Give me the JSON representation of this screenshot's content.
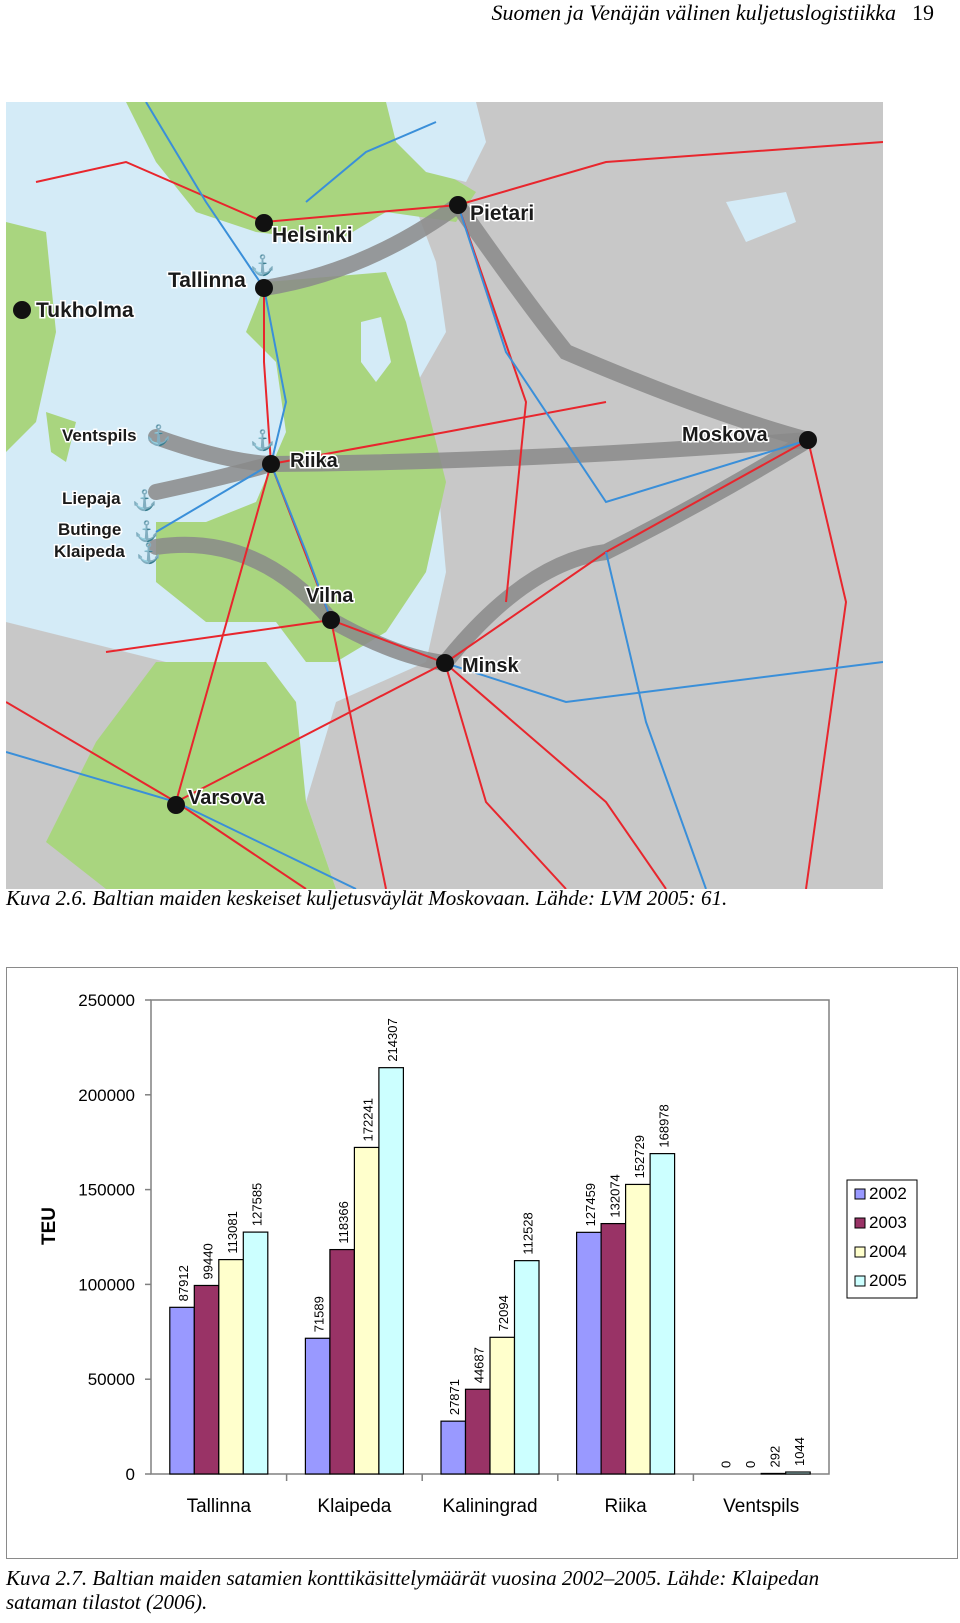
{
  "header": {
    "title": "Suomen ja Venäjän välinen kuljetuslogistiikka",
    "page": "19"
  },
  "map": {
    "cities": [
      {
        "name": "Helsinki"
      },
      {
        "name": "Pietari"
      },
      {
        "name": "Tallinna"
      },
      {
        "name": "Tukholma"
      },
      {
        "name": "Ventspils"
      },
      {
        "name": "Riika"
      },
      {
        "name": "Moskova"
      },
      {
        "name": "Liepaja"
      },
      {
        "name": "Butinge"
      },
      {
        "name": "Klaipeda"
      },
      {
        "name": "Vilna"
      },
      {
        "name": "Minsk"
      },
      {
        "name": "Varsova"
      }
    ],
    "colors": {
      "sea": "#d4ebf7",
      "land_green": "#a9d57f",
      "land_grey": "#c8c8c8",
      "road": "#e8262d",
      "rail": "#3a8fd9",
      "corridor": "#8a8a8a"
    }
  },
  "caption1": "Kuva 2.6. Baltian maiden keskeiset kuljetusväylät Moskovaan. Lähde: LVM 2005: 61.",
  "chart_data": {
    "type": "bar",
    "ylabel": "TEU",
    "ylim": [
      0,
      250000
    ],
    "yticks": [
      "0",
      "50000",
      "100000",
      "150000",
      "200000",
      "250000"
    ],
    "categories": [
      "Tallinna",
      "Klaipeda",
      "Kaliningrad",
      "Riika",
      "Ventspils"
    ],
    "series": [
      {
        "name": "2002",
        "color": "#9999ff",
        "values": [
          87912,
          71589,
          27871,
          127459,
          0
        ]
      },
      {
        "name": "2003",
        "color": "#993366",
        "values": [
          99440,
          118366,
          44687,
          132074,
          0
        ]
      },
      {
        "name": "2004",
        "color": "#ffffcc",
        "values": [
          113081,
          172241,
          72094,
          152729,
          292
        ]
      },
      {
        "name": "2005",
        "color": "#ccffff",
        "values": [
          127585,
          214307,
          112528,
          168978,
          1044
        ]
      }
    ],
    "grid": false,
    "legend": "right"
  },
  "caption2_line1": "Kuva 2.7. Baltian maiden satamien konttikäsittelymäärät vuosina 2002–2005. Lähde: Klaipedan",
  "caption2_line2": "sataman tilastot (2006)."
}
